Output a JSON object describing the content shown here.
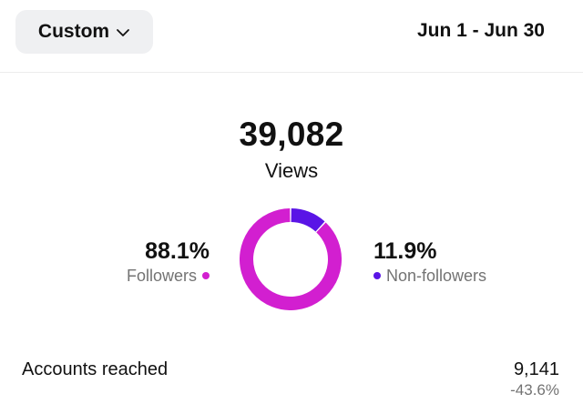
{
  "header": {
    "range_selector": "Custom",
    "date_range": "Jun 1 - Jun 30"
  },
  "summary": {
    "total": "39,082",
    "label": "Views"
  },
  "breakdown": {
    "followers": {
      "percent": "88.1%",
      "label": "Followers",
      "share": 0.881,
      "color": "#d21fd0"
    },
    "non_followers": {
      "percent": "11.9%",
      "label": "Non-followers",
      "share": 0.119,
      "color": "#5a14e6"
    }
  },
  "accounts_reached": {
    "label": "Accounts reached",
    "value": "9,141",
    "change": "-43.6%"
  }
}
